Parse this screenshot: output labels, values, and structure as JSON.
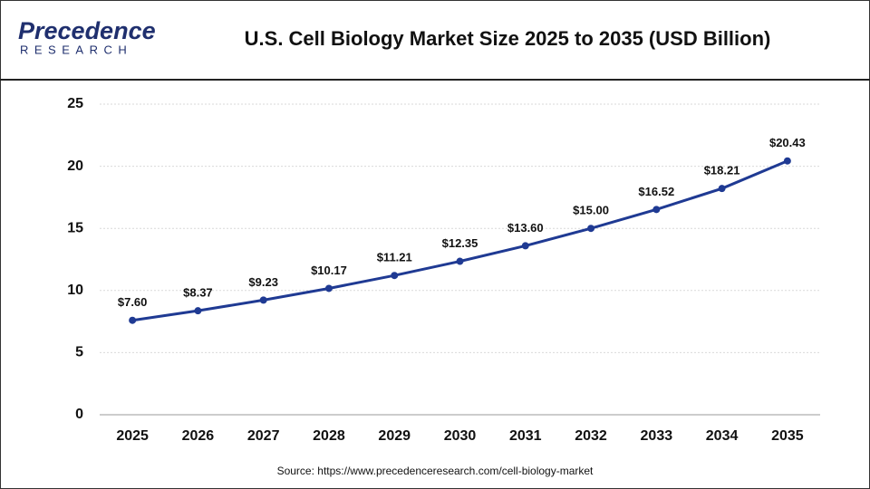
{
  "logo": {
    "name": "Precedence",
    "tagline": "RESEARCH"
  },
  "chart_data": {
    "type": "line",
    "title": "U.S. Cell Biology Market Size 2025 to 2035 (USD Billion)",
    "source": "Source: https://www.precedenceresearch.com/cell-biology-market",
    "categories": [
      "2025",
      "2026",
      "2027",
      "2028",
      "2029",
      "2030",
      "2031",
      "2032",
      "2033",
      "2034",
      "2035"
    ],
    "values": [
      7.6,
      8.37,
      9.23,
      10.17,
      11.21,
      12.35,
      13.6,
      15.0,
      16.52,
      18.21,
      20.43
    ],
    "value_labels": [
      "$7.60",
      "$8.37",
      "$9.23",
      "$10.17",
      "$11.21",
      "$12.35",
      "$13.60",
      "$15.00",
      "$16.52",
      "$18.21",
      "$20.43"
    ],
    "color": "#1f3a93",
    "ylim": [
      0,
      25
    ],
    "yticks": [
      0,
      5,
      10,
      15,
      20,
      25
    ],
    "grid": true
  }
}
